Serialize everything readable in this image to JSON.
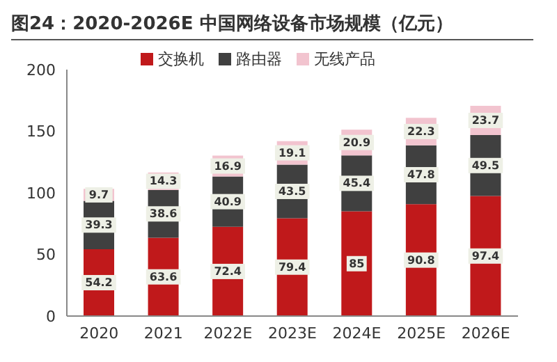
{
  "chart_data": {
    "type": "bar",
    "title": "图24：2020-2026E 中国网络设备市场规模（亿元）",
    "categories": [
      "2020",
      "2021",
      "2022E",
      "2023E",
      "2024E",
      "2025E",
      "2026E"
    ],
    "stacked": true,
    "data_labels": true,
    "legend": "top",
    "grid": false,
    "ylim": [
      0,
      200
    ],
    "yticks": [
      0,
      50,
      100,
      150,
      200
    ],
    "series": [
      {
        "name": "交换机",
        "color": "#c0191b",
        "values": [
          54.2,
          63.6,
          72.4,
          79.4,
          85,
          90.8,
          97.4
        ]
      },
      {
        "name": "路由器",
        "color": "#404040",
        "values": [
          39.3,
          38.6,
          40.9,
          43.5,
          45.4,
          47.8,
          49.5
        ]
      },
      {
        "name": "无线产品",
        "color": "#f2c4cf",
        "values": [
          9.7,
          14.3,
          16.9,
          19.1,
          20.9,
          22.3,
          23.7
        ]
      }
    ]
  }
}
